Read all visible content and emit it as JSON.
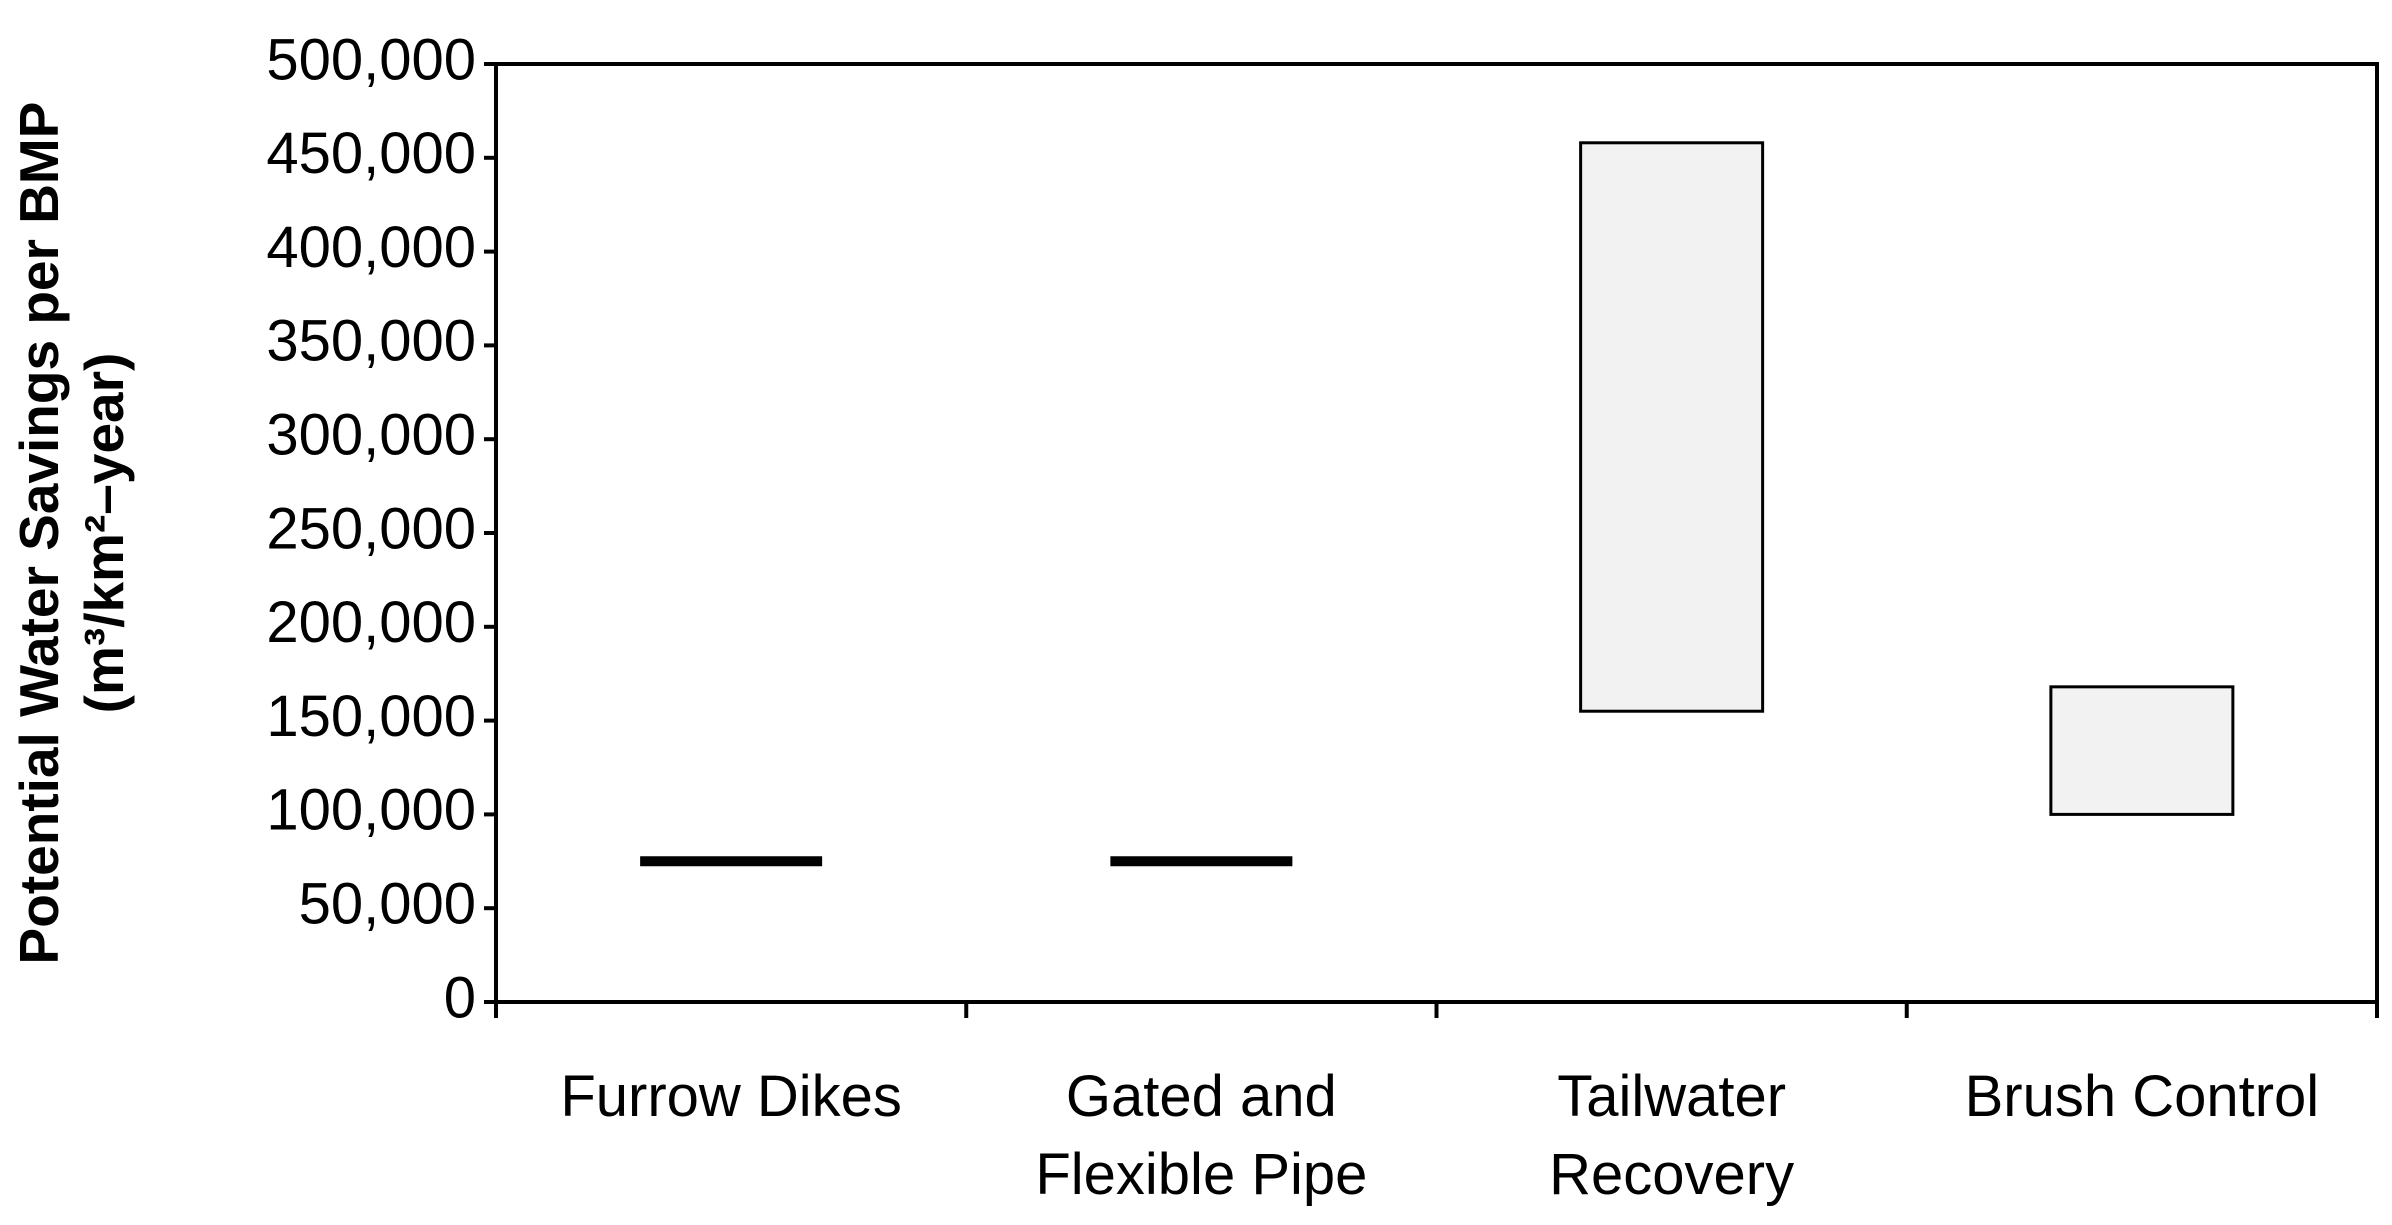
{
  "chart_data": {
    "type": "floating-bar",
    "y_label": [
      "Potential Water Savings per BMP",
      "(m³/km²–year)"
    ],
    "categories": [
      [
        "Furrow Dikes"
      ],
      [
        "Gated and",
        "Flexible Pipe"
      ],
      [
        "Tailwater",
        "Recovery"
      ],
      [
        "Brush Control"
      ]
    ],
    "low": [
      75000,
      75000,
      155000,
      100000
    ],
    "high": [
      75000,
      75000,
      458000,
      168000
    ],
    "color": "#f2f2f2",
    "ylim": [
      0,
      500000
    ],
    "yticks": [
      0,
      {
        "value": 50000,
        "label": "50,000"
      },
      {
        "value": 100000,
        "label": "100,000"
      },
      {
        "value": 150000,
        "label": "150,000"
      },
      {
        "value": 200000,
        "label": "200,000"
      },
      {
        "value": 250000,
        "label": "250,000"
      },
      {
        "value": 300000,
        "label": "300,000"
      },
      {
        "value": 350000,
        "label": "350,000"
      },
      {
        "value": 400000,
        "label": "400,000"
      },
      {
        "value": 450000,
        "label": "450,000"
      },
      {
        "value": 500000,
        "label": "500,000"
      }
    ],
    "grid": false
  }
}
